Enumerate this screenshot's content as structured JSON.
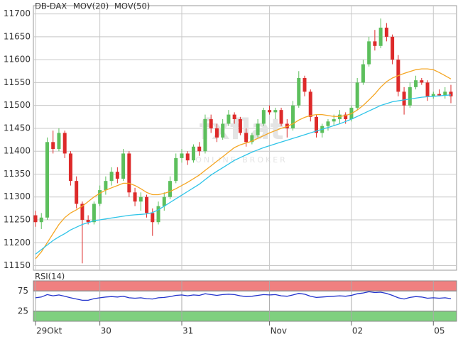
{
  "chart_data": [
    {
      "type": "candlestick",
      "title": "DB-DAX",
      "title_color": "#e8452c",
      "watermark": "fxflat",
      "watermark_subtitle": "ONLINE BROKER",
      "up_color": "#5cbf5c",
      "down_color": "#dd2a2a",
      "open": [
        11260,
        11245,
        11255,
        11420,
        11405,
        11440,
        11395,
        11335,
        11285,
        11250,
        11245,
        11285,
        11315,
        11335,
        11355,
        11340,
        11395,
        11310,
        11290,
        11300,
        11265,
        11245,
        11280,
        11300,
        11335,
        11385,
        11395,
        11380,
        11410,
        11400,
        11470,
        11450,
        11430,
        11460,
        11480,
        11470,
        11440,
        11420,
        11435,
        11460,
        11490,
        11485,
        11490,
        11460,
        11450,
        11500,
        11560,
        11530,
        11475,
        11440,
        11455,
        11465,
        11470,
        11480,
        11470,
        11495,
        11550,
        11590,
        11640,
        11630,
        11670,
        11650,
        11600,
        11530,
        11500,
        11540,
        11555,
        11550,
        11520,
        11525,
        11522,
        11530
      ],
      "high": [
        11270,
        11265,
        11430,
        11445,
        11450,
        11445,
        11400,
        11345,
        11290,
        11260,
        11290,
        11325,
        11345,
        11365,
        11365,
        11405,
        11400,
        11320,
        11310,
        11305,
        11275,
        11290,
        11310,
        11345,
        11395,
        11405,
        11400,
        11415,
        11420,
        11480,
        11480,
        11460,
        11470,
        11490,
        11485,
        11475,
        11450,
        11440,
        11470,
        11495,
        11500,
        11495,
        11495,
        11470,
        11510,
        11575,
        11565,
        11535,
        11480,
        11460,
        11470,
        11480,
        11490,
        11485,
        11500,
        11560,
        11600,
        11650,
        11665,
        11690,
        11680,
        11655,
        11610,
        11540,
        11550,
        11565,
        11560,
        11555,
        11530,
        11535,
        11540,
        11545
      ],
      "low": [
        11235,
        11230,
        11250,
        11395,
        11400,
        11385,
        11325,
        11275,
        11155,
        11240,
        11240,
        11280,
        11305,
        11325,
        11330,
        11335,
        11300,
        11280,
        11270,
        11255,
        11215,
        11240,
        11270,
        11295,
        11330,
        11375,
        11370,
        11375,
        11390,
        11395,
        11440,
        11420,
        11425,
        11455,
        11460,
        11435,
        11410,
        11415,
        11430,
        11455,
        11480,
        11470,
        11455,
        11430,
        11445,
        11495,
        11520,
        11465,
        11430,
        11430,
        11445,
        11455,
        11460,
        11460,
        11465,
        11490,
        11545,
        11585,
        11620,
        11625,
        11640,
        11590,
        11520,
        11480,
        11495,
        11535,
        11545,
        11510,
        11515,
        11520,
        11515,
        11505
      ],
      "close": [
        11245,
        11255,
        11420,
        11405,
        11440,
        11395,
        11335,
        11285,
        11250,
        11245,
        11285,
        11315,
        11335,
        11355,
        11340,
        11395,
        11310,
        11290,
        11300,
        11265,
        11245,
        11280,
        11300,
        11335,
        11385,
        11395,
        11380,
        11410,
        11400,
        11470,
        11450,
        11430,
        11460,
        11480,
        11470,
        11440,
        11420,
        11435,
        11460,
        11490,
        11485,
        11490,
        11460,
        11450,
        11500,
        11560,
        11530,
        11475,
        11440,
        11455,
        11465,
        11470,
        11480,
        11470,
        11495,
        11550,
        11590,
        11640,
        11630,
        11670,
        11650,
        11600,
        11530,
        11500,
        11540,
        11555,
        11550,
        11520,
        11525,
        11522,
        11530,
        11520
      ],
      "series": [
        {
          "name": "MOV(20)",
          "color": "#f5a623",
          "values": [
            11165,
            11180,
            11200,
            11220,
            11240,
            11255,
            11265,
            11272,
            11280,
            11290,
            11300,
            11308,
            11315,
            11320,
            11325,
            11330,
            11330,
            11325,
            11318,
            11310,
            11305,
            11305,
            11308,
            11312,
            11318,
            11325,
            11332,
            11340,
            11348,
            11358,
            11368,
            11378,
            11388,
            11398,
            11408,
            11414,
            11418,
            11422,
            11428,
            11434,
            11440,
            11445,
            11450,
            11454,
            11460,
            11468,
            11474,
            11478,
            11480,
            11480,
            11478,
            11476,
            11476,
            11478,
            11482,
            11490,
            11500,
            11512,
            11525,
            11540,
            11552,
            11560,
            11565,
            11570,
            11574,
            11578,
            11580,
            11580,
            11578,
            11572,
            11565,
            11558
          ]
        },
        {
          "name": "MOV(50)",
          "color": "#2ec4e8",
          "values": [
            11175,
            11185,
            11195,
            11205,
            11213,
            11220,
            11228,
            11234,
            11240,
            11244,
            11248,
            11250,
            11252,
            11254,
            11256,
            11258,
            11260,
            11261,
            11262,
            11263,
            11266,
            11272,
            11280,
            11288,
            11296,
            11304,
            11312,
            11320,
            11328,
            11338,
            11348,
            11356,
            11364,
            11372,
            11380,
            11386,
            11392,
            11398,
            11403,
            11408,
            11412,
            11416,
            11420,
            11424,
            11428,
            11432,
            11436,
            11440,
            11444,
            11448,
            11452,
            11456,
            11460,
            11465,
            11470,
            11476,
            11482,
            11488,
            11494,
            11500,
            11504,
            11508,
            11510,
            11512,
            11514,
            11516,
            11518,
            11519,
            11520,
            11521,
            11522,
            11523
          ]
        }
      ],
      "ylim": [
        11140,
        11718
      ],
      "yticks": [
        11150,
        11200,
        11250,
        11300,
        11350,
        11400,
        11450,
        11500,
        11550,
        11600,
        11650,
        11700
      ],
      "grid": true
    },
    {
      "type": "line",
      "title": "RSI(14)",
      "categories": [
        "29Okt",
        null,
        null,
        null,
        null,
        null,
        null,
        null,
        null,
        null,
        null,
        "30",
        null,
        null,
        null,
        null,
        null,
        null,
        null,
        null,
        null,
        null,
        null,
        null,
        null,
        "31",
        null,
        null,
        null,
        null,
        null,
        null,
        null,
        null,
        null,
        null,
        null,
        null,
        null,
        null,
        "Nov",
        null,
        null,
        null,
        null,
        null,
        null,
        null,
        null,
        null,
        null,
        null,
        null,
        null,
        "02",
        null,
        null,
        null,
        null,
        null,
        null,
        null,
        null,
        null,
        null,
        null,
        null,
        null,
        "05",
        null,
        null,
        null
      ],
      "series": [
        {
          "name": "RSI(14)",
          "color": "#2233cc",
          "values": [
            58,
            60,
            66,
            63,
            65,
            62,
            58,
            55,
            52,
            52,
            56,
            58,
            60,
            61,
            60,
            62,
            58,
            57,
            58,
            56,
            55,
            58,
            59,
            61,
            64,
            65,
            63,
            65,
            64,
            68,
            66,
            64,
            66,
            67,
            66,
            63,
            61,
            62,
            64,
            66,
            65,
            66,
            63,
            62,
            65,
            69,
            67,
            62,
            59,
            60,
            61,
            62,
            63,
            62,
            64,
            68,
            70,
            73,
            71,
            72,
            69,
            64,
            58,
            55,
            59,
            61,
            60,
            57,
            58,
            57,
            58,
            56
          ]
        }
      ],
      "ylim": [
        0,
        100
      ],
      "yticks": [
        25,
        75
      ],
      "upper_band": [
        75,
        100
      ],
      "lower_band": [
        0,
        25
      ],
      "upper_color": "#f08080",
      "lower_color": "#7fd07f"
    }
  ]
}
